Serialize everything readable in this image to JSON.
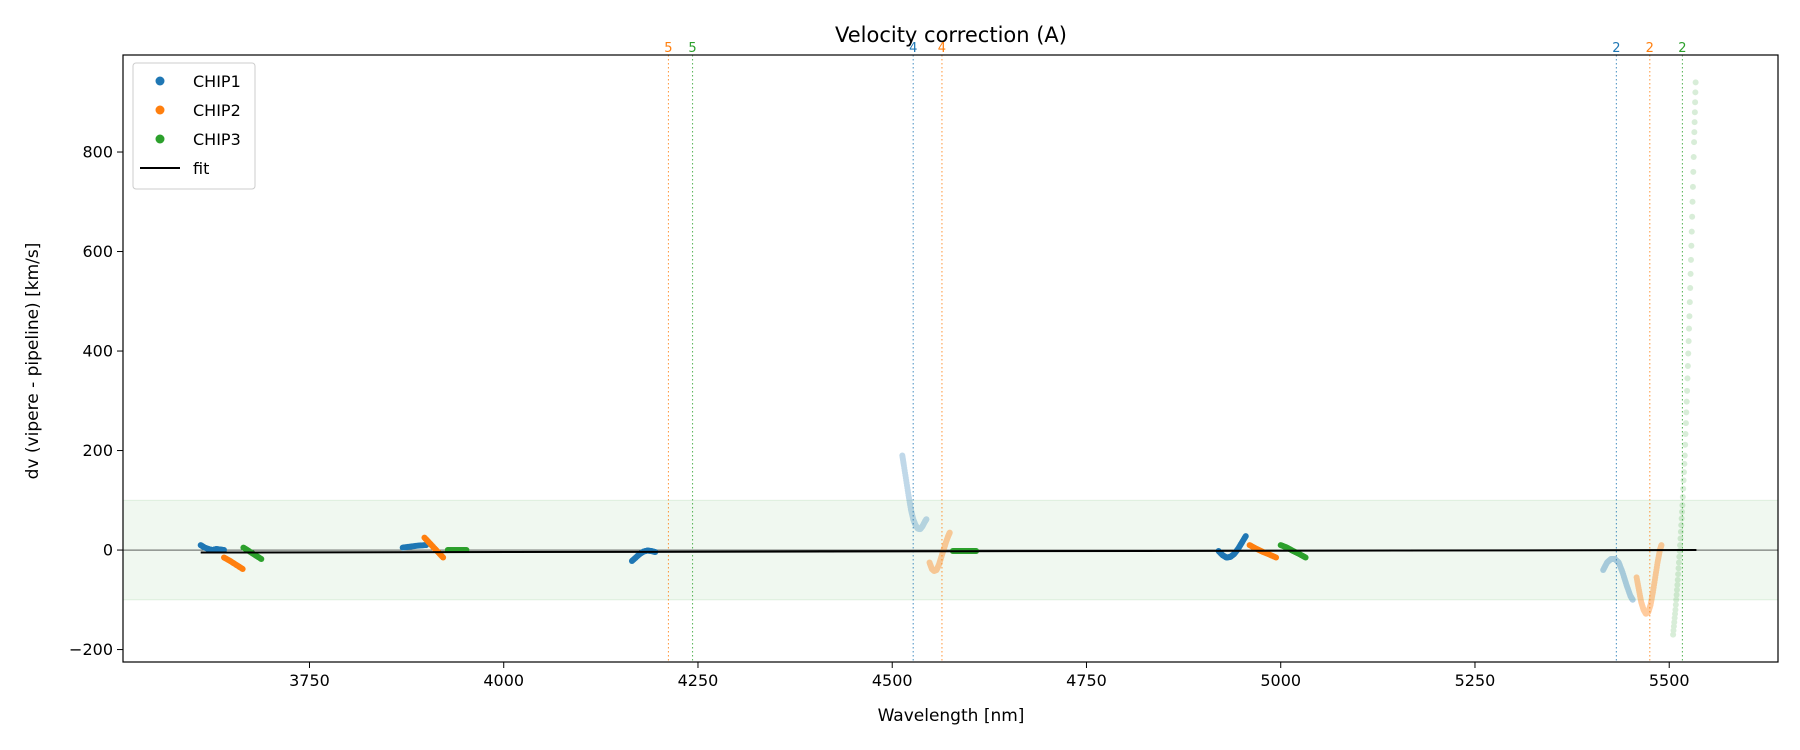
{
  "chart_data": {
    "type": "scatter",
    "title": "Velocity correction (A)",
    "xlabel": "Wavelength [nm]",
    "ylabel": "dv (vipere - pipeline) [km/s]",
    "xlim": [
      3510,
      5640
    ],
    "ylim": [
      -225,
      995
    ],
    "xticks": [
      3750,
      4000,
      4250,
      4500,
      4750,
      5000,
      5250,
      5500
    ],
    "yticks": [
      -200,
      0,
      200,
      400,
      600,
      800
    ],
    "legend_position": "upper-left",
    "band": {
      "ymin": -100,
      "ymax": 100,
      "color": "#2ca02c"
    },
    "zero_line": true,
    "legend": [
      {
        "label": "CHIP1",
        "kind": "marker",
        "color": "#1f77b4"
      },
      {
        "label": "CHIP2",
        "kind": "marker",
        "color": "#ff7f0e"
      },
      {
        "label": "CHIP3",
        "kind": "marker",
        "color": "#2ca02c"
      },
      {
        "label": "fit",
        "kind": "line",
        "color": "#000000"
      }
    ],
    "order_markers": [
      {
        "x": 4212,
        "label": "5",
        "color": "#ff7f0e"
      },
      {
        "x": 4243,
        "label": "5",
        "color": "#2ca02c"
      },
      {
        "x": 4527,
        "label": "4",
        "color": "#1f77b4"
      },
      {
        "x": 4564,
        "label": "4",
        "color": "#ff7f0e"
      },
      {
        "x": 5432,
        "label": "2",
        "color": "#1f77b4"
      },
      {
        "x": 5475,
        "label": "2",
        "color": "#ff7f0e"
      },
      {
        "x": 5517,
        "label": "2",
        "color": "#2ca02c"
      }
    ],
    "fit": {
      "x": [
        3610,
        5535
      ],
      "y": [
        -5,
        0
      ],
      "color": "#000000"
    },
    "series": [
      {
        "name": "CHIP1",
        "color": "#1f77b4",
        "segments": [
          {
            "opacity": 1.0,
            "points": [
              [
                3610,
                10
              ],
              [
                3615,
                5
              ],
              [
                3620,
                2
              ],
              [
                3625,
                0
              ],
              [
                3630,
                2
              ],
              [
                3635,
                1
              ],
              [
                3640,
                0
              ]
            ]
          },
          {
            "opacity": 1.0,
            "points": [
              [
                3870,
                5
              ],
              [
                3880,
                7
              ],
              [
                3890,
                9
              ],
              [
                3900,
                10
              ]
            ]
          },
          {
            "opacity": 1.0,
            "points": [
              [
                4165,
                -22
              ],
              [
                4170,
                -15
              ],
              [
                4175,
                -8
              ],
              [
                4180,
                -3
              ],
              [
                4185,
                -1
              ],
              [
                4190,
                -2
              ],
              [
                4195,
                -4
              ]
            ]
          },
          {
            "opacity": 0.28,
            "points": [
              [
                4513,
                190
              ],
              [
                4515,
                170
              ],
              [
                4518,
                140
              ],
              [
                4521,
                110
              ],
              [
                4524,
                82
              ],
              [
                4527,
                62
              ],
              [
                4530,
                50
              ],
              [
                4533,
                43
              ],
              [
                4536,
                42
              ],
              [
                4539,
                48
              ],
              [
                4542,
                57
              ],
              [
                4544,
                62
              ]
            ]
          },
          {
            "opacity": 1.0,
            "points": [
              [
                4920,
                -2
              ],
              [
                4925,
                -10
              ],
              [
                4930,
                -15
              ],
              [
                4935,
                -14
              ],
              [
                4940,
                -8
              ],
              [
                4945,
                2
              ],
              [
                4950,
                15
              ],
              [
                4955,
                28
              ]
            ]
          },
          {
            "opacity": 0.35,
            "points": [
              [
                5415,
                -40
              ],
              [
                5420,
                -25
              ],
              [
                5425,
                -18
              ],
              [
                5430,
                -18
              ],
              [
                5435,
                -25
              ],
              [
                5440,
                -45
              ],
              [
                5445,
                -70
              ],
              [
                5450,
                -92
              ],
              [
                5453,
                -100
              ]
            ]
          }
        ]
      },
      {
        "name": "CHIP2",
        "color": "#ff7f0e",
        "segments": [
          {
            "opacity": 1.0,
            "points": [
              [
                3640,
                -15
              ],
              [
                3648,
                -22
              ],
              [
                3656,
                -30
              ],
              [
                3664,
                -38
              ]
            ]
          },
          {
            "opacity": 1.0,
            "points": [
              [
                3898,
                25
              ],
              [
                3904,
                15
              ],
              [
                3910,
                5
              ],
              [
                3916,
                -5
              ],
              [
                3922,
                -15
              ]
            ]
          },
          {
            "opacity": 0.4,
            "points": [
              [
                4548,
                -25
              ],
              [
                4551,
                -38
              ],
              [
                4554,
                -42
              ],
              [
                4557,
                -40
              ],
              [
                4560,
                -30
              ],
              [
                4563,
                -15
              ],
              [
                4566,
                0
              ],
              [
                4569,
                15
              ],
              [
                4572,
                28
              ],
              [
                4574,
                35
              ]
            ]
          },
          {
            "opacity": 1.0,
            "points": [
              [
                4960,
                10
              ],
              [
                4968,
                3
              ],
              [
                4976,
                -3
              ],
              [
                4984,
                -8
              ],
              [
                4994,
                -15
              ]
            ]
          },
          {
            "opacity": 0.4,
            "points": [
              [
                5458,
                -55
              ],
              [
                5461,
                -80
              ],
              [
                5464,
                -105
              ],
              [
                5467,
                -120
              ],
              [
                5470,
                -128
              ],
              [
                5473,
                -125
              ],
              [
                5476,
                -110
              ],
              [
                5479,
                -85
              ],
              [
                5482,
                -55
              ],
              [
                5485,
                -25
              ],
              [
                5488,
                0
              ],
              [
                5490,
                10
              ]
            ]
          }
        ]
      },
      {
        "name": "CHIP3",
        "color": "#2ca02c",
        "segments": [
          {
            "opacity": 1.0,
            "points": [
              [
                3665,
                5
              ],
              [
                3672,
                -2
              ],
              [
                3680,
                -10
              ],
              [
                3688,
                -18
              ]
            ]
          },
          {
            "opacity": 1.0,
            "points": [
              [
                3928,
                0
              ],
              [
                3936,
                0
              ],
              [
                3944,
                0
              ],
              [
                3952,
                0
              ]
            ]
          },
          {
            "opacity": 1.0,
            "points": [
              [
                4578,
                -2
              ],
              [
                4586,
                -2
              ],
              [
                4594,
                -2
              ],
              [
                4602,
                -2
              ],
              [
                4608,
                -2
              ]
            ]
          },
          {
            "opacity": 1.0,
            "points": [
              [
                5000,
                10
              ],
              [
                5008,
                5
              ],
              [
                5016,
                -2
              ],
              [
                5024,
                -8
              ],
              [
                5032,
                -15
              ]
            ]
          },
          {
            "opacity": 0.18,
            "points": [
              [
                5505,
                -170
              ],
              [
                5508,
                -120
              ],
              [
                5511,
                -60
              ],
              [
                5514,
                10
              ],
              [
                5517,
                90
              ],
              [
                5520,
                190
              ],
              [
                5523,
                320
              ],
              [
                5526,
                470
              ],
              [
                5529,
                640
              ],
              [
                5532,
                820
              ],
              [
                5534,
                940
              ]
            ]
          }
        ]
      }
    ]
  }
}
